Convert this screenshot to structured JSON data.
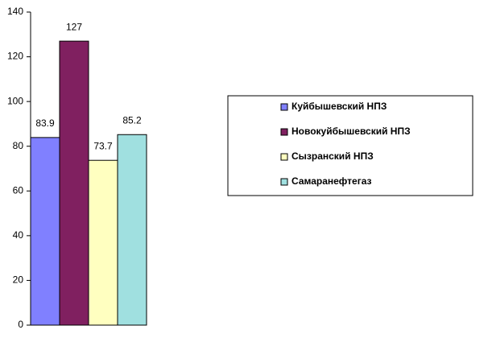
{
  "chart_data": {
    "type": "bar",
    "categories": [
      null
    ],
    "series": [
      {
        "name": "Куйбышевский НПЗ",
        "color": "#8080ff",
        "values": [
          83.9
        ]
      },
      {
        "name": "Новокуйбышевский НПЗ",
        "color": "#802060",
        "values": [
          127
        ]
      },
      {
        "name": "Сызранский НПЗ",
        "color": "#ffffc0",
        "values": [
          73.7
        ]
      },
      {
        "name": "Самаранефтегаз",
        "color": "#a0e0e0",
        "values": [
          85.2
        ]
      }
    ],
    "ylim": [
      0,
      140
    ],
    "yticks": [
      0,
      20,
      40,
      60,
      80,
      100,
      120,
      140
    ],
    "legend": "right"
  }
}
